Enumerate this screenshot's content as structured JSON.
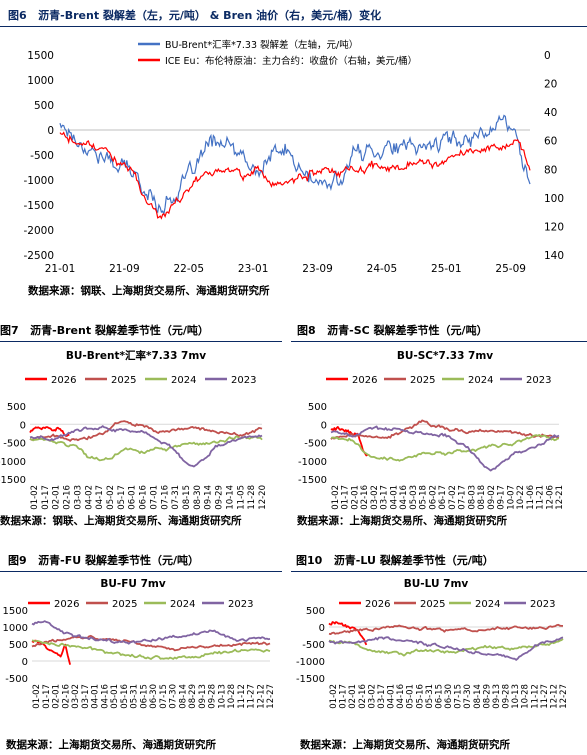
{
  "figures": {
    "fig6": {
      "num": "图6",
      "title": "沥青-Brent 裂解差（左，元/吨） & Bren 油价（右，美元/桶）变化",
      "source": "数据来源：钢联、上海期货交易所、海通期货研究所"
    },
    "fig7": {
      "num": "图7",
      "title": "沥青-Brent 裂解差季节性（元/吨）",
      "source": "数据来源：钢联、上海期货交易所、海通期货研究所"
    },
    "fig8": {
      "num": "图8",
      "title": "沥青-SC 裂解差季节性（元/吨）",
      "source": "数据来源：上海期货交易所、海通期货研究所"
    },
    "fig9": {
      "num": "图9",
      "title": "沥青-FU 裂解差季节性（元/吨）",
      "source": "数据来源：上海期货交易所、海通期货研究所"
    },
    "fig10": {
      "num": "图10",
      "title": "沥青-LU 裂解差季节性（元/吨）",
      "source": "数据来源：上海期货交易所、海通期货研究所"
    }
  },
  "chart_data": [
    {
      "id": "fig6",
      "type": "line",
      "title": "",
      "x_tick_labels": [
        "21-01",
        "21-09",
        "22-05",
        "23-01",
        "23-09",
        "24-05",
        "25-01",
        "25-09"
      ],
      "y_left": {
        "ylim": [
          -2500,
          1500
        ],
        "ticks": [
          1500,
          1000,
          500,
          0,
          -500,
          -1000,
          -1500,
          -2000,
          -2500
        ]
      },
      "y_right": {
        "ylim": [
          140,
          0
        ],
        "ticks": [
          0,
          20,
          40,
          60,
          80,
          100,
          120,
          140
        ],
        "inverted": true
      },
      "series": [
        {
          "name": "BU-Brent*汇率*7.33 裂解差（左轴，元/吨）",
          "color": "#4472c4",
          "axis": "left",
          "t": [
            0,
            0.05,
            0.1,
            0.15,
            0.18,
            0.21,
            0.24,
            0.27,
            0.3,
            0.33,
            0.36,
            0.39,
            0.42,
            0.45,
            0.48,
            0.51,
            0.54,
            0.57,
            0.6,
            0.63,
            0.66,
            0.7,
            0.74,
            0.78,
            0.82,
            0.86,
            0.9,
            0.94,
            0.97,
            1.0
          ],
          "values": [
            150,
            -300,
            -600,
            -800,
            -1200,
            -1500,
            -1350,
            -1000,
            -550,
            -200,
            -350,
            -600,
            -900,
            -500,
            -400,
            -800,
            -1050,
            -1150,
            -900,
            -450,
            -400,
            -300,
            -400,
            -300,
            -200,
            -200,
            0,
            200,
            -100,
            -1000
          ]
        },
        {
          "name": "ICE Eu：布伦特原油：主力合约：收盘价（右轴，美元/桶）",
          "color": "#ff0000",
          "axis": "right",
          "t": [
            0,
            0.05,
            0.1,
            0.15,
            0.18,
            0.21,
            0.24,
            0.27,
            0.3,
            0.33,
            0.36,
            0.39,
            0.42,
            0.45,
            0.48,
            0.51,
            0.54,
            0.57,
            0.6,
            0.63,
            0.66,
            0.7,
            0.74,
            0.78,
            0.82,
            0.86,
            0.9,
            0.94,
            0.97,
            1.0
          ],
          "values": [
            55,
            63,
            70,
            80,
            100,
            115,
            105,
            95,
            85,
            82,
            80,
            85,
            80,
            90,
            87,
            85,
            82,
            80,
            82,
            80,
            78,
            80,
            75,
            78,
            75,
            70,
            68,
            65,
            62,
            78
          ]
        }
      ]
    },
    {
      "id": "fig7",
      "type": "line",
      "title": "BU-Brent*汇率*7.33 7mv",
      "ylim": [
        -1500,
        500
      ],
      "yticks": [
        500,
        0,
        -500,
        -1000,
        -1500
      ],
      "x_tick_labels": [
        "01-02",
        "01-17",
        "02-01",
        "02-16",
        "03-03",
        "03-18",
        "04-02",
        "04-17",
        "05-02",
        "05-17",
        "06-01",
        "06-16",
        "07-01",
        "07-16",
        "07-31",
        "08-15",
        "08-30",
        "09-14",
        "09-29",
        "10-14",
        "10-29",
        "11-13",
        "11-28",
        "12-13",
        "12-28"
      ],
      "x_tick_labels_visible": [
        "01-02",
        "01-17",
        "02-01",
        "02-16",
        "03-03",
        "03-18",
        "04-02",
        "04-17",
        "05-02",
        "05-17",
        "06-01",
        "06-16",
        "07-01",
        "07-16",
        "07-31",
        "08-15",
        "08-30",
        "09-14",
        "09-29",
        "10-14",
        "10-29",
        "11-13",
        "11-28",
        "12-13",
        "12-28"
      ],
      "x_tick_labels_shown": [
        "01-02",
        "01-17",
        "02-01",
        "02-16",
        "03-03",
        "04-02",
        "04-17",
        "05-02",
        "05-17",
        "06-01",
        "06-16",
        "07-01",
        "07-16",
        "07-31",
        "08-15",
        "08-30",
        "09-14",
        "09-29",
        "10-14",
        "11-05",
        "11-28",
        "12-20"
      ],
      "series": [
        {
          "name": "2026",
          "color": "#ff0000",
          "t": [
            0,
            0.03,
            0.06,
            0.09,
            0.12,
            0.15,
            0.17
          ],
          "values": [
            -200,
            -100,
            -120,
            -150,
            -100,
            -250,
            -300
          ]
        },
        {
          "name": "2025",
          "color": "#c0504d",
          "t": [
            0,
            0.1,
            0.2,
            0.3,
            0.35,
            0.4,
            0.45,
            0.5,
            0.55,
            0.6,
            0.7,
            0.8,
            0.9,
            1.0
          ],
          "values": [
            -400,
            -350,
            -400,
            -300,
            -100,
            100,
            0,
            -50,
            -200,
            -150,
            -100,
            -200,
            -300,
            -100
          ]
        },
        {
          "name": "2024",
          "color": "#9bbb59",
          "t": [
            0,
            0.1,
            0.2,
            0.25,
            0.3,
            0.35,
            0.4,
            0.5,
            0.6,
            0.7,
            0.8,
            0.9,
            1.0
          ],
          "values": [
            -400,
            -450,
            -600,
            -900,
            -950,
            -900,
            -700,
            -750,
            -650,
            -550,
            -500,
            -350,
            -400
          ]
        },
        {
          "name": "2023",
          "color": "#8064a2",
          "t": [
            0,
            0.1,
            0.2,
            0.3,
            0.4,
            0.5,
            0.6,
            0.65,
            0.7,
            0.75,
            0.8,
            0.85,
            0.9,
            1.0
          ],
          "values": [
            -350,
            -400,
            -150,
            -50,
            -200,
            -250,
            -600,
            -900,
            -1150,
            -1000,
            -600,
            -500,
            -400,
            -300
          ]
        }
      ]
    },
    {
      "id": "fig8",
      "type": "line",
      "title": "BU-SC*7.33 7mv",
      "ylim": [
        -1500,
        500
      ],
      "yticks": [
        500,
        0,
        -500,
        -1000,
        -1500
      ],
      "x_tick_labels": [
        "01-02",
        "01-14",
        "01-26",
        "02-07",
        "02-19",
        "03-03",
        "03-15",
        "03-27",
        "04-08",
        "04-20",
        "05-02",
        "05-14",
        "05-26",
        "06-07",
        "06-19",
        "07-01",
        "07-13",
        "07-25",
        "08-06",
        "08-18",
        "08-30",
        "09-11",
        "09-23",
        "10-05",
        "10-17",
        "10-29",
        "11-10",
        "11-22",
        "12-04",
        "12-16",
        "12-28"
      ],
      "x_tick_labels_shown": [
        "01-02",
        "01-17",
        "02-01",
        "02-16",
        "03-02",
        "03-17",
        "04-01",
        "04-16",
        "05-03",
        "05-18",
        "06-02",
        "06-17",
        "07-02",
        "07-17",
        "08-03",
        "08-18",
        "09-02",
        "09-17",
        "10-07",
        "10-22",
        "11-06",
        "11-21",
        "12-06",
        "12-21"
      ],
      "series": [
        {
          "name": "2026",
          "color": "#ff0000",
          "t": [
            0,
            0.03,
            0.06,
            0.09,
            0.12,
            0.14,
            0.16
          ],
          "values": [
            -150,
            -100,
            -200,
            -250,
            -300,
            -700,
            -850
          ]
        },
        {
          "name": "2025",
          "color": "#c0504d",
          "t": [
            0,
            0.1,
            0.2,
            0.3,
            0.35,
            0.4,
            0.45,
            0.5,
            0.6,
            0.7,
            0.8,
            0.9,
            1.0
          ],
          "values": [
            -400,
            -300,
            -350,
            -250,
            -100,
            100,
            -50,
            -100,
            -200,
            -150,
            -250,
            -300,
            -350
          ]
        },
        {
          "name": "2024",
          "color": "#9bbb59",
          "t": [
            0,
            0.1,
            0.15,
            0.2,
            0.3,
            0.4,
            0.5,
            0.6,
            0.7,
            0.8,
            0.9,
            1.0
          ],
          "values": [
            -350,
            -450,
            -800,
            -900,
            -950,
            -800,
            -800,
            -700,
            -600,
            -550,
            -300,
            -400
          ]
        },
        {
          "name": "2023",
          "color": "#8064a2",
          "t": [
            0,
            0.1,
            0.2,
            0.3,
            0.4,
            0.5,
            0.6,
            0.65,
            0.7,
            0.75,
            0.8,
            0.9,
            1.0
          ],
          "values": [
            -200,
            -300,
            -100,
            -150,
            -250,
            -300,
            -650,
            -1000,
            -1300,
            -1100,
            -800,
            -600,
            -300
          ]
        }
      ]
    },
    {
      "id": "fig9",
      "type": "line",
      "title": "BU-FU 7mv",
      "ylim": [
        -500,
        1500
      ],
      "yticks": [
        1500,
        1000,
        500,
        0,
        -500
      ],
      "x_tick_labels_shown": [
        "01-02",
        "01-17",
        "02-01",
        "02-16",
        "03-02",
        "03-17",
        "04-01",
        "04-16",
        "05-01",
        "05-16",
        "05-31",
        "06-15",
        "06-30",
        "07-15",
        "07-30",
        "08-14",
        "08-29",
        "09-13",
        "09-28",
        "10-13",
        "10-28",
        "11-12",
        "11-27",
        "12-12",
        "12-27"
      ],
      "series": [
        {
          "name": "2026",
          "color": "#ff0000",
          "t": [
            0,
            0.03,
            0.06,
            0.09,
            0.12,
            0.14,
            0.16
          ],
          "values": [
            600,
            550,
            400,
            300,
            100,
            500,
            -50
          ]
        },
        {
          "name": "2025",
          "color": "#c0504d",
          "t": [
            0,
            0.1,
            0.2,
            0.3,
            0.4,
            0.5,
            0.6,
            0.7,
            0.8,
            0.9,
            1.0
          ],
          "values": [
            450,
            600,
            700,
            650,
            600,
            450,
            350,
            400,
            450,
            500,
            550
          ]
        },
        {
          "name": "2024",
          "color": "#9bbb59",
          "t": [
            0,
            0.1,
            0.2,
            0.3,
            0.4,
            0.5,
            0.6,
            0.7,
            0.8,
            0.9,
            1.0
          ],
          "values": [
            600,
            500,
            400,
            300,
            200,
            100,
            100,
            150,
            250,
            350,
            300
          ]
        },
        {
          "name": "2023",
          "color": "#8064a2",
          "t": [
            0,
            0.05,
            0.1,
            0.15,
            0.2,
            0.3,
            0.4,
            0.5,
            0.6,
            0.7,
            0.75,
            0.8,
            0.85,
            0.9,
            0.95,
            1.0
          ],
          "values": [
            1100,
            1200,
            1000,
            800,
            700,
            600,
            500,
            600,
            700,
            800,
            900,
            800,
            600,
            600,
            700,
            650
          ]
        }
      ]
    },
    {
      "id": "fig10",
      "type": "line",
      "title": "BU-LU 7mv",
      "ylim": [
        -1500,
        500
      ],
      "yticks": [
        500,
        0,
        -500,
        -1000,
        -1500
      ],
      "x_tick_labels_shown": [
        "01-02",
        "01-17",
        "02-01",
        "02-16",
        "03-02",
        "03-17",
        "04-01",
        "04-16",
        "05-01",
        "05-16",
        "05-31",
        "06-15",
        "06-30",
        "07-15",
        "07-30",
        "08-14",
        "08-29",
        "09-13",
        "09-28",
        "10-13",
        "10-28",
        "11-12",
        "11-27",
        "12-12",
        "12-27"
      ],
      "series": [
        {
          "name": "2026",
          "color": "#ff0000",
          "t": [
            0,
            0.03,
            0.06,
            0.09,
            0.12,
            0.14,
            0.16
          ],
          "values": [
            100,
            150,
            50,
            0,
            -100,
            -300,
            -500
          ]
        },
        {
          "name": "2025",
          "color": "#c0504d",
          "t": [
            0,
            0.1,
            0.2,
            0.3,
            0.4,
            0.5,
            0.6,
            0.7,
            0.8,
            0.9,
            1.0
          ],
          "values": [
            -200,
            -100,
            -50,
            0,
            -50,
            -100,
            -100,
            -50,
            0,
            -50,
            50
          ]
        },
        {
          "name": "2024",
          "color": "#9bbb59",
          "t": [
            0,
            0.1,
            0.2,
            0.3,
            0.4,
            0.5,
            0.6,
            0.7,
            0.8,
            0.9,
            1.0
          ],
          "values": [
            -400,
            -500,
            -700,
            -800,
            -700,
            -750,
            -650,
            -600,
            -650,
            -500,
            -400
          ]
        },
        {
          "name": "2023",
          "color": "#8064a2",
          "t": [
            0,
            0.1,
            0.2,
            0.3,
            0.4,
            0.5,
            0.6,
            0.7,
            0.8,
            0.9,
            1.0
          ],
          "values": [
            -400,
            -500,
            -300,
            -400,
            -500,
            -600,
            -700,
            -800,
            -900,
            -500,
            -300
          ]
        }
      ]
    }
  ]
}
